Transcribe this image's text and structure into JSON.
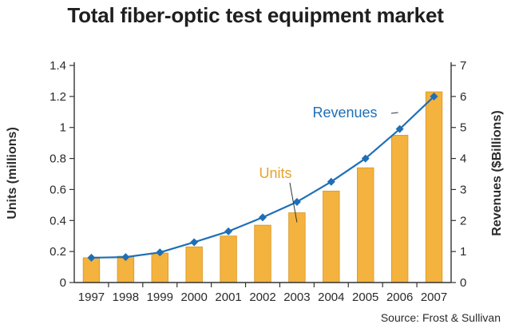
{
  "chart_data": {
    "type": "bar",
    "title": "Total fiber-optic test equipment market",
    "source": "Source: Frost & Sullivan",
    "categories": [
      "1997",
      "1998",
      "1999",
      "2000",
      "2001",
      "2002",
      "2003",
      "2004",
      "2005",
      "2006",
      "2007"
    ],
    "series": [
      {
        "name": "Units",
        "type": "bar",
        "axis": "left",
        "color": "#F4B23E",
        "values": [
          0.16,
          0.17,
          0.19,
          0.23,
          0.3,
          0.37,
          0.45,
          0.59,
          0.74,
          0.95,
          1.23
        ]
      },
      {
        "name": "Revenues",
        "type": "line",
        "axis": "right",
        "color": "#1F6FB7",
        "marker": "diamond",
        "values": [
          0.8,
          0.82,
          0.97,
          1.3,
          1.65,
          2.1,
          2.6,
          3.25,
          4.0,
          4.95,
          6.0
        ]
      }
    ],
    "ylabel": "Units (millions)",
    "ylim": [
      0,
      1.4
    ],
    "y_ticks": [
      "0",
      "0.2",
      "0.4",
      "0.6",
      "0.8",
      "1",
      "1.2",
      "1.4"
    ],
    "y2label": "Revenues ($Billions)",
    "y2lim": [
      0,
      7
    ],
    "y2_ticks": [
      "0",
      "1",
      "2",
      "3",
      "4",
      "5",
      "6",
      "7"
    ],
    "annotations": [
      "Units",
      "Revenues"
    ],
    "grid": false,
    "legend": "none"
  }
}
